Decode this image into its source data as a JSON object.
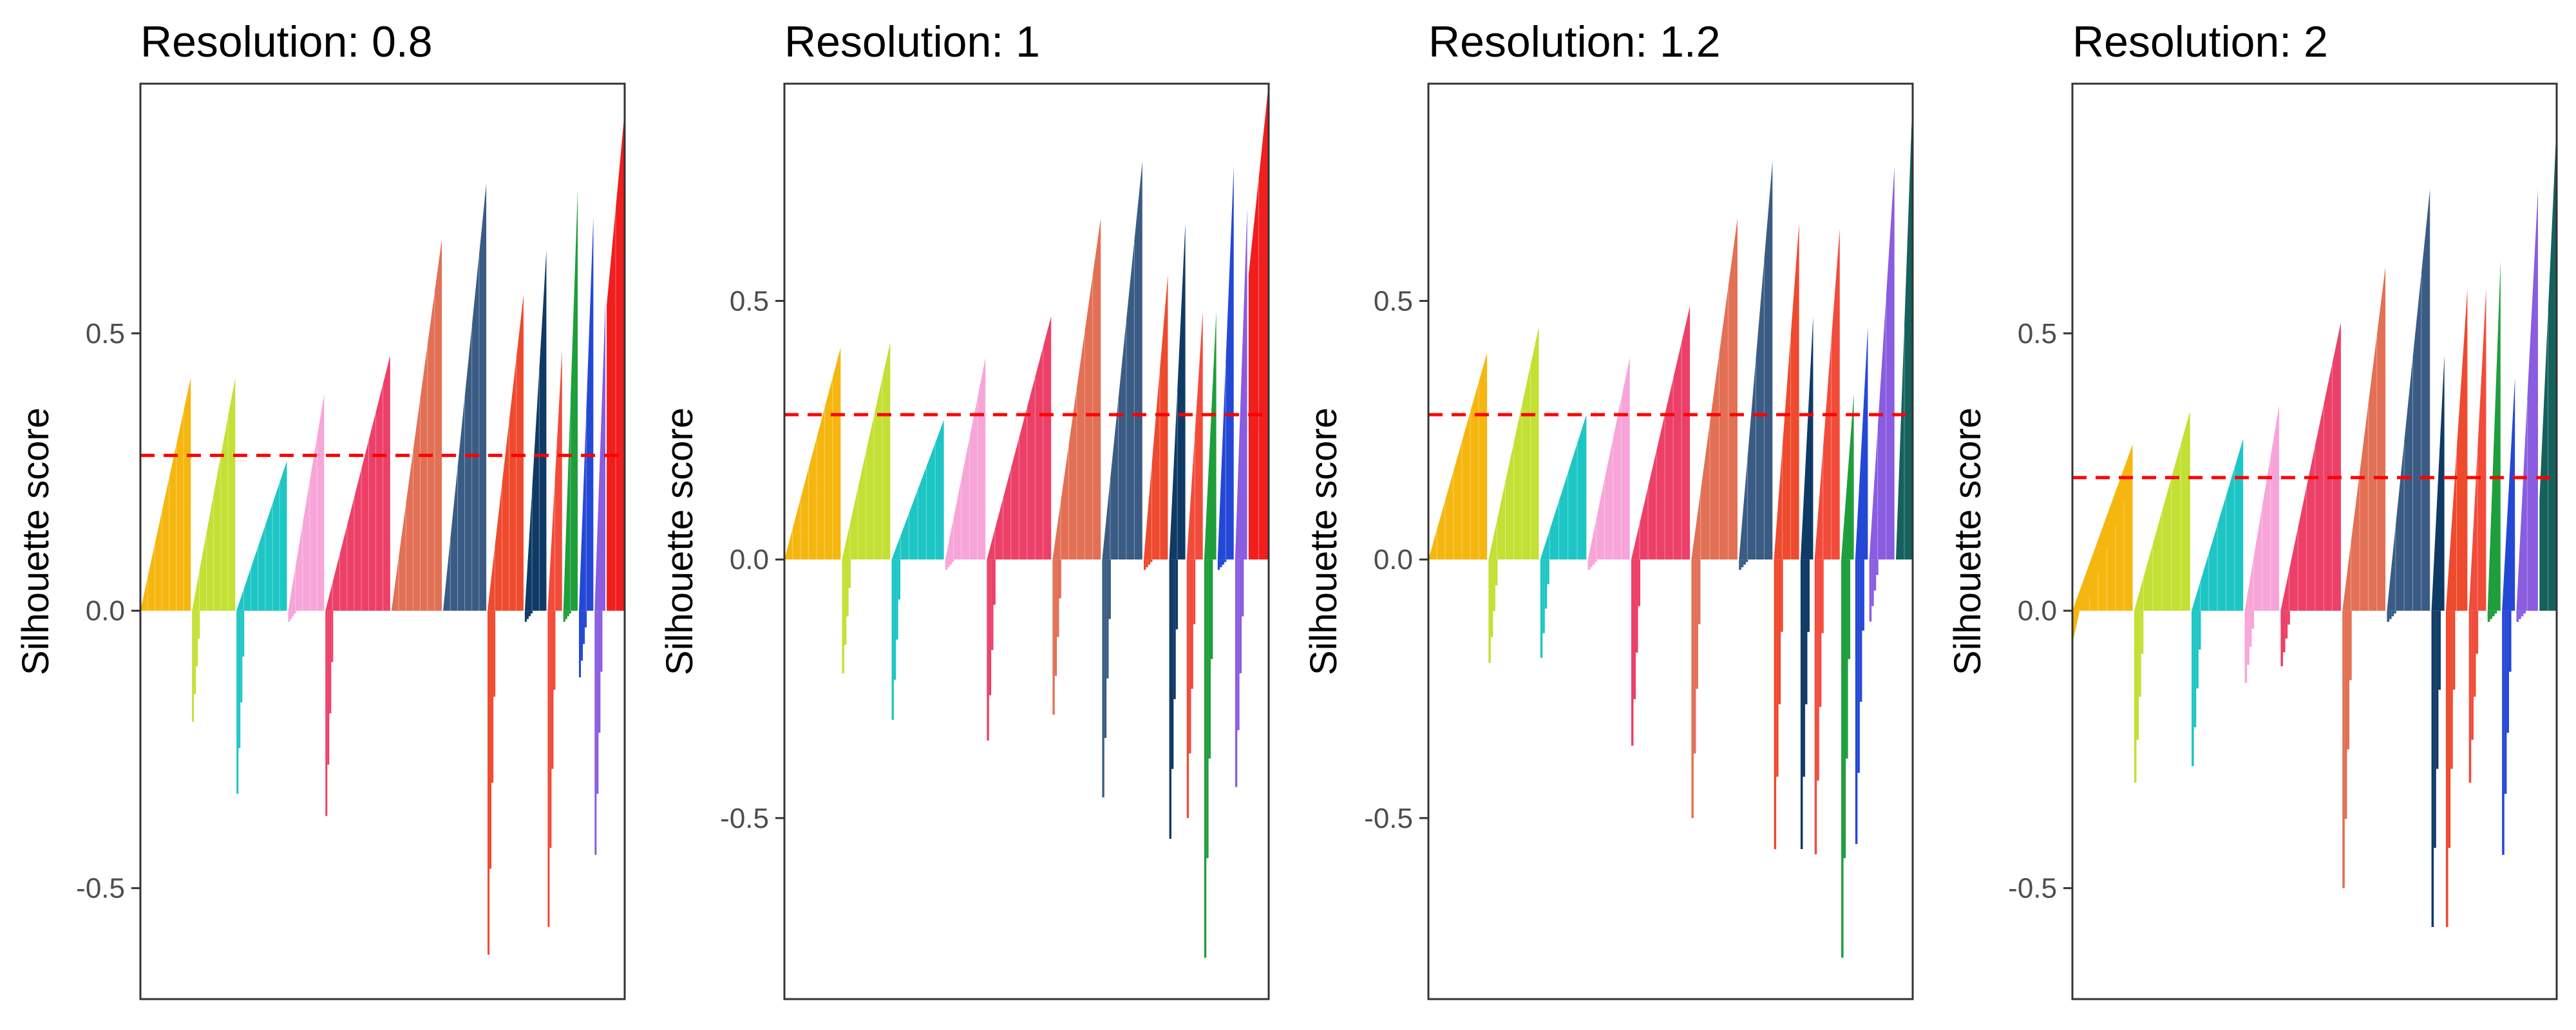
{
  "chart_data": [
    {
      "type": "bar",
      "title": "Resolution:  0.8",
      "ylabel": "Silhouette score",
      "ylim": [
        -0.7,
        0.95
      ],
      "yticks": [
        -0.5,
        0.0,
        0.5
      ],
      "ytick_labels": [
        "-0.5",
        "0.0",
        "0.5"
      ],
      "mean_line": 0.28,
      "clusters": [
        {
          "color": "#F5B70F",
          "max": 0.42,
          "min": 0.0,
          "neg": 0.0,
          "n": 14
        },
        {
          "color": "#C3E034",
          "max": 0.42,
          "min": 0.0,
          "neg": -0.2,
          "n": 12
        },
        {
          "color": "#1DC6C4",
          "max": 0.27,
          "min": 0.0,
          "neg": -0.33,
          "n": 14
        },
        {
          "color": "#F7A5D9",
          "max": 0.39,
          "min": 0.0,
          "neg": -0.02,
          "n": 10
        },
        {
          "color": "#EC4068",
          "max": 0.46,
          "min": 0.0,
          "neg": -0.37,
          "n": 18
        },
        {
          "color": "#E27055",
          "max": 0.67,
          "min": 0.0,
          "neg": 0.0,
          "n": 14
        },
        {
          "color": "#3A5C84",
          "max": 0.77,
          "min": 0.0,
          "neg": 0.0,
          "n": 12
        },
        {
          "color": "#EE4A2E",
          "max": 0.57,
          "min": 0.0,
          "neg": -0.62,
          "n": 10
        },
        {
          "color": "#0F3A66",
          "max": 0.65,
          "min": 0.0,
          "neg": -0.02,
          "n": 6
        },
        {
          "color": "#F24B3A",
          "max": 0.47,
          "min": 0.0,
          "neg": -0.57,
          "n": 4
        },
        {
          "color": "#1F9E3C",
          "max": 0.76,
          "min": 0.0,
          "neg": -0.02,
          "n": 4
        },
        {
          "color": "#2448D6",
          "max": 0.71,
          "min": 0.0,
          "neg": -0.12,
          "n": 4
        },
        {
          "color": "#8A5CE0",
          "max": 0.56,
          "min": 0.0,
          "neg": -0.44,
          "n": 3
        },
        {
          "color": "#F11E1E",
          "max": 0.9,
          "min": 0.55,
          "neg": 0.0,
          "n": 5
        }
      ]
    },
    {
      "type": "bar",
      "title": "Resolution:  1",
      "ylabel": "Silhouette score",
      "ylim": [
        -0.85,
        0.92
      ],
      "yticks": [
        -0.5,
        0.0,
        0.5
      ],
      "ytick_labels": [
        "-0.5",
        "0.0",
        "0.5"
      ],
      "mean_line": 0.28,
      "clusters": [
        {
          "color": "#F5B70F",
          "max": 0.41,
          "min": 0.0,
          "neg": 0.0,
          "n": 14
        },
        {
          "color": "#C3E034",
          "max": 0.42,
          "min": 0.0,
          "neg": -0.22,
          "n": 12
        },
        {
          "color": "#1DC6C4",
          "max": 0.27,
          "min": 0.0,
          "neg": -0.31,
          "n": 13
        },
        {
          "color": "#F7A5D9",
          "max": 0.39,
          "min": 0.0,
          "neg": -0.02,
          "n": 10
        },
        {
          "color": "#EC4068",
          "max": 0.47,
          "min": 0.0,
          "neg": -0.35,
          "n": 16
        },
        {
          "color": "#E27055",
          "max": 0.66,
          "min": 0.0,
          "neg": -0.3,
          "n": 12
        },
        {
          "color": "#3A5C84",
          "max": 0.77,
          "min": 0.0,
          "neg": -0.46,
          "n": 10
        },
        {
          "color": "#EE4A2E",
          "max": 0.55,
          "min": 0.0,
          "neg": -0.02,
          "n": 6
        },
        {
          "color": "#0F3A66",
          "max": 0.65,
          "min": 0.0,
          "neg": -0.54,
          "n": 4
        },
        {
          "color": "#F24B3A",
          "max": 0.48,
          "min": 0.0,
          "neg": -0.5,
          "n": 4
        },
        {
          "color": "#1F9E3C",
          "max": 0.48,
          "min": 0.0,
          "neg": -0.77,
          "n": 3
        },
        {
          "color": "#2448D6",
          "max": 0.76,
          "min": 0.0,
          "neg": -0.02,
          "n": 4
        },
        {
          "color": "#8A5CE0",
          "max": 0.68,
          "min": 0.0,
          "neg": -0.44,
          "n": 3
        },
        {
          "color": "#F11E1E",
          "max": 0.92,
          "min": 0.55,
          "neg": 0.0,
          "n": 5
        }
      ]
    },
    {
      "type": "bar",
      "title": "Resolution:  1.2",
      "ylabel": "Silhouette score",
      "ylim": [
        -0.85,
        0.92
      ],
      "yticks": [
        -0.5,
        0.0,
        0.5
      ],
      "ytick_labels": [
        "-0.5",
        "0.0",
        "0.5"
      ],
      "mean_line": 0.28,
      "clusters": [
        {
          "color": "#F5B70F",
          "max": 0.4,
          "min": 0.0,
          "neg": 0.0,
          "n": 14
        },
        {
          "color": "#C3E034",
          "max": 0.45,
          "min": 0.0,
          "neg": -0.2,
          "n": 12
        },
        {
          "color": "#1DC6C4",
          "max": 0.28,
          "min": 0.0,
          "neg": -0.19,
          "n": 11
        },
        {
          "color": "#F7A5D9",
          "max": 0.39,
          "min": 0.0,
          "neg": -0.02,
          "n": 10
        },
        {
          "color": "#EC4068",
          "max": 0.49,
          "min": 0.0,
          "neg": -0.36,
          "n": 14
        },
        {
          "color": "#E27055",
          "max": 0.66,
          "min": 0.0,
          "neg": -0.5,
          "n": 11
        },
        {
          "color": "#3A5C84",
          "max": 0.77,
          "min": 0.0,
          "neg": -0.02,
          "n": 8
        },
        {
          "color": "#EE4A2E",
          "max": 0.65,
          "min": 0.0,
          "neg": -0.56,
          "n": 6
        },
        {
          "color": "#0F3A66",
          "max": 0.47,
          "min": 0.0,
          "neg": -0.56,
          "n": 3
        },
        {
          "color": "#F24B3A",
          "max": 0.64,
          "min": 0.0,
          "neg": -0.57,
          "n": 6
        },
        {
          "color": "#1F9E3C",
          "max": 0.32,
          "min": 0.0,
          "neg": -0.77,
          "n": 3
        },
        {
          "color": "#2448D6",
          "max": 0.45,
          "min": 0.0,
          "neg": -0.55,
          "n": 3
        },
        {
          "color": "#8A5CE0",
          "max": 0.76,
          "min": 0.0,
          "neg": -0.12,
          "n": 6
        },
        {
          "color": "#15615C",
          "max": 0.9,
          "min": 0.0,
          "neg": 0.0,
          "n": 4
        }
      ]
    },
    {
      "type": "bar",
      "title": "Resolution:  2",
      "ylabel": "Silhouette score",
      "ylim": [
        -0.7,
        0.95
      ],
      "yticks": [
        -0.5,
        0.0,
        0.5
      ],
      "ytick_labels": [
        "-0.5",
        "0.0",
        "0.5"
      ],
      "mean_line": 0.24,
      "clusters": [
        {
          "color": "#F5B70F",
          "max": 0.3,
          "min": -0.06,
          "neg": 0.0,
          "n": 14
        },
        {
          "color": "#C3E034",
          "max": 0.36,
          "min": 0.0,
          "neg": -0.31,
          "n": 13
        },
        {
          "color": "#1DC6C4",
          "max": 0.31,
          "min": 0.0,
          "neg": -0.28,
          "n": 12
        },
        {
          "color": "#F7A5D9",
          "max": 0.37,
          "min": 0.0,
          "neg": -0.13,
          "n": 8
        },
        {
          "color": "#EC4068",
          "max": 0.52,
          "min": 0.0,
          "neg": -0.1,
          "n": 14
        },
        {
          "color": "#E27055",
          "max": 0.62,
          "min": 0.0,
          "neg": -0.5,
          "n": 10
        },
        {
          "color": "#3A5C84",
          "max": 0.76,
          "min": 0.0,
          "neg": -0.02,
          "n": 10
        },
        {
          "color": "#0F3A66",
          "max": 0.46,
          "min": 0.0,
          "neg": -0.57,
          "n": 3
        },
        {
          "color": "#EE4A2E",
          "max": 0.58,
          "min": 0.0,
          "neg": -0.57,
          "n": 5
        },
        {
          "color": "#F24B3A",
          "max": 0.58,
          "min": 0.0,
          "neg": -0.31,
          "n": 4
        },
        {
          "color": "#1F9E3C",
          "max": 0.63,
          "min": 0.0,
          "neg": -0.02,
          "n": 3
        },
        {
          "color": "#2448D6",
          "max": 0.42,
          "min": 0.0,
          "neg": -0.44,
          "n": 3
        },
        {
          "color": "#8A5CE0",
          "max": 0.76,
          "min": 0.0,
          "neg": -0.02,
          "n": 5
        },
        {
          "color": "#15615C",
          "max": 0.88,
          "min": 0.2,
          "neg": 0.0,
          "n": 4
        }
      ]
    }
  ]
}
